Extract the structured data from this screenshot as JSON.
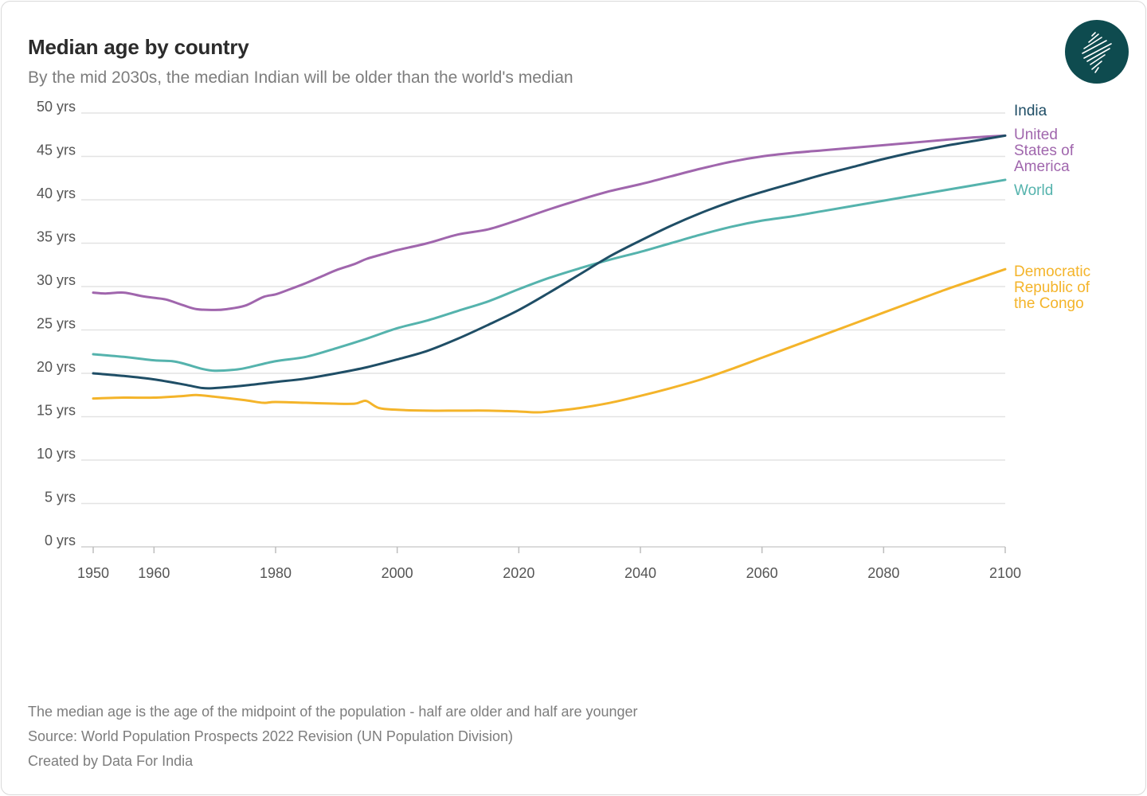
{
  "title": "Median age by country",
  "subtitle": "By the mid 2030s, the median Indian will be older than the world's median",
  "notes": [
    "The median age is the age of the midpoint of the population - half are older and half are younger",
    "Source: World Population Prospects 2022 Revision (UN Population Division)",
    "Created by Data For India"
  ],
  "logo_icon": "india-map-logo-icon",
  "colors": {
    "india": "#1f4e66",
    "usa": "#a066ad",
    "world": "#55b3ad",
    "drc": "#f4b42a",
    "logo_bg": "#0e4b4f",
    "grid": "#e3e3e3",
    "axis_text": "#555555"
  },
  "chart_data": {
    "type": "line",
    "title": "Median age by country",
    "subtitle": "By the mid 2030s, the median Indian will be older than the world's median",
    "xlabel": "",
    "ylabel": "",
    "xlim": [
      1950,
      2100
    ],
    "ylim": [
      0,
      50
    ],
    "x_ticks": [
      1950,
      1960,
      1980,
      2000,
      2020,
      2040,
      2060,
      2080,
      2100
    ],
    "y_ticks": [
      {
        "value": 0,
        "label": "0 yrs"
      },
      {
        "value": 5,
        "label": "5 yrs"
      },
      {
        "value": 10,
        "label": "10 yrs"
      },
      {
        "value": 15,
        "label": "15 yrs"
      },
      {
        "value": 20,
        "label": "20 yrs"
      },
      {
        "value": 25,
        "label": "25 yrs"
      },
      {
        "value": 30,
        "label": "30 yrs"
      },
      {
        "value": 35,
        "label": "35 yrs"
      },
      {
        "value": 40,
        "label": "40 yrs"
      },
      {
        "value": 45,
        "label": "45 yrs"
      },
      {
        "value": 50,
        "label": "50 yrs"
      }
    ],
    "grid": true,
    "legend": "end-of-line labels",
    "series": [
      {
        "key": "usa",
        "name": "United States of America",
        "label_lines": [
          "United",
          "States of",
          "America"
        ],
        "color": "#a066ad",
        "points": [
          [
            1950,
            29.3
          ],
          [
            1952,
            29.2
          ],
          [
            1955,
            29.3
          ],
          [
            1958,
            28.9
          ],
          [
            1960,
            28.7
          ],
          [
            1962,
            28.5
          ],
          [
            1965,
            27.8
          ],
          [
            1967,
            27.4
          ],
          [
            1970,
            27.3
          ],
          [
            1972,
            27.4
          ],
          [
            1975,
            27.8
          ],
          [
            1978,
            28.8
          ],
          [
            1980,
            29.1
          ],
          [
            1982,
            29.6
          ],
          [
            1985,
            30.4
          ],
          [
            1988,
            31.3
          ],
          [
            1990,
            31.9
          ],
          [
            1993,
            32.6
          ],
          [
            1995,
            33.2
          ],
          [
            1998,
            33.8
          ],
          [
            2000,
            34.2
          ],
          [
            2005,
            35.0
          ],
          [
            2010,
            36.0
          ],
          [
            2015,
            36.6
          ],
          [
            2020,
            37.7
          ],
          [
            2025,
            38.9
          ],
          [
            2030,
            40.0
          ],
          [
            2035,
            41.0
          ],
          [
            2040,
            41.8
          ],
          [
            2045,
            42.7
          ],
          [
            2050,
            43.6
          ],
          [
            2055,
            44.4
          ],
          [
            2060,
            45.0
          ],
          [
            2065,
            45.4
          ],
          [
            2070,
            45.7
          ],
          [
            2075,
            46.0
          ],
          [
            2080,
            46.3
          ],
          [
            2085,
            46.6
          ],
          [
            2090,
            46.9
          ],
          [
            2095,
            47.2
          ],
          [
            2100,
            47.4
          ]
        ]
      },
      {
        "key": "india",
        "name": "India",
        "label_lines": [
          "India"
        ],
        "color": "#1f4e66",
        "points": [
          [
            1950,
            20.0
          ],
          [
            1955,
            19.7
          ],
          [
            1960,
            19.3
          ],
          [
            1965,
            18.7
          ],
          [
            1968,
            18.3
          ],
          [
            1970,
            18.3
          ],
          [
            1975,
            18.6
          ],
          [
            1980,
            19.0
          ],
          [
            1985,
            19.4
          ],
          [
            1990,
            20.0
          ],
          [
            1995,
            20.7
          ],
          [
            2000,
            21.6
          ],
          [
            2005,
            22.6
          ],
          [
            2010,
            24.0
          ],
          [
            2015,
            25.6
          ],
          [
            2020,
            27.3
          ],
          [
            2025,
            29.3
          ],
          [
            2030,
            31.4
          ],
          [
            2035,
            33.5
          ],
          [
            2040,
            35.3
          ],
          [
            2045,
            37.0
          ],
          [
            2050,
            38.5
          ],
          [
            2055,
            39.8
          ],
          [
            2060,
            40.9
          ],
          [
            2065,
            41.9
          ],
          [
            2070,
            42.9
          ],
          [
            2075,
            43.8
          ],
          [
            2080,
            44.7
          ],
          [
            2085,
            45.5
          ],
          [
            2090,
            46.2
          ],
          [
            2095,
            46.8
          ],
          [
            2100,
            47.4
          ]
        ]
      },
      {
        "key": "world",
        "name": "World",
        "label_lines": [
          "World"
        ],
        "color": "#55b3ad",
        "points": [
          [
            1950,
            22.2
          ],
          [
            1955,
            21.9
          ],
          [
            1960,
            21.5
          ],
          [
            1963,
            21.4
          ],
          [
            1965,
            21.1
          ],
          [
            1968,
            20.5
          ],
          [
            1970,
            20.3
          ],
          [
            1973,
            20.4
          ],
          [
            1975,
            20.6
          ],
          [
            1980,
            21.4
          ],
          [
            1985,
            21.9
          ],
          [
            1990,
            22.9
          ],
          [
            1995,
            24.0
          ],
          [
            2000,
            25.2
          ],
          [
            2005,
            26.1
          ],
          [
            2010,
            27.2
          ],
          [
            2015,
            28.3
          ],
          [
            2020,
            29.7
          ],
          [
            2025,
            31.0
          ],
          [
            2030,
            32.1
          ],
          [
            2035,
            33.1
          ],
          [
            2040,
            34.0
          ],
          [
            2045,
            35.0
          ],
          [
            2050,
            36.0
          ],
          [
            2055,
            36.9
          ],
          [
            2060,
            37.6
          ],
          [
            2065,
            38.1
          ],
          [
            2070,
            38.7
          ],
          [
            2075,
            39.3
          ],
          [
            2080,
            39.9
          ],
          [
            2085,
            40.5
          ],
          [
            2090,
            41.1
          ],
          [
            2095,
            41.7
          ],
          [
            2100,
            42.3
          ]
        ]
      },
      {
        "key": "drc",
        "name": "Democratic Republic of the Congo",
        "label_lines": [
          "Democratic",
          "Republic of",
          "the Congo"
        ],
        "color": "#f4b42a",
        "points": [
          [
            1950,
            17.1
          ],
          [
            1955,
            17.2
          ],
          [
            1960,
            17.2
          ],
          [
            1965,
            17.4
          ],
          [
            1967,
            17.5
          ],
          [
            1970,
            17.3
          ],
          [
            1975,
            16.9
          ],
          [
            1978,
            16.6
          ],
          [
            1980,
            16.7
          ],
          [
            1985,
            16.6
          ],
          [
            1990,
            16.5
          ],
          [
            1993,
            16.5
          ],
          [
            1994,
            16.7
          ],
          [
            1995,
            16.8
          ],
          [
            1997,
            16.0
          ],
          [
            2000,
            15.8
          ],
          [
            2005,
            15.7
          ],
          [
            2010,
            15.7
          ],
          [
            2015,
            15.7
          ],
          [
            2020,
            15.6
          ],
          [
            2023,
            15.5
          ],
          [
            2025,
            15.6
          ],
          [
            2030,
            16.0
          ],
          [
            2035,
            16.6
          ],
          [
            2040,
            17.4
          ],
          [
            2045,
            18.3
          ],
          [
            2050,
            19.3
          ],
          [
            2055,
            20.5
          ],
          [
            2060,
            21.8
          ],
          [
            2065,
            23.1
          ],
          [
            2070,
            24.4
          ],
          [
            2075,
            25.7
          ],
          [
            2080,
            27.0
          ],
          [
            2085,
            28.3
          ],
          [
            2090,
            29.6
          ],
          [
            2095,
            30.8
          ],
          [
            2100,
            32.0
          ]
        ]
      }
    ]
  }
}
